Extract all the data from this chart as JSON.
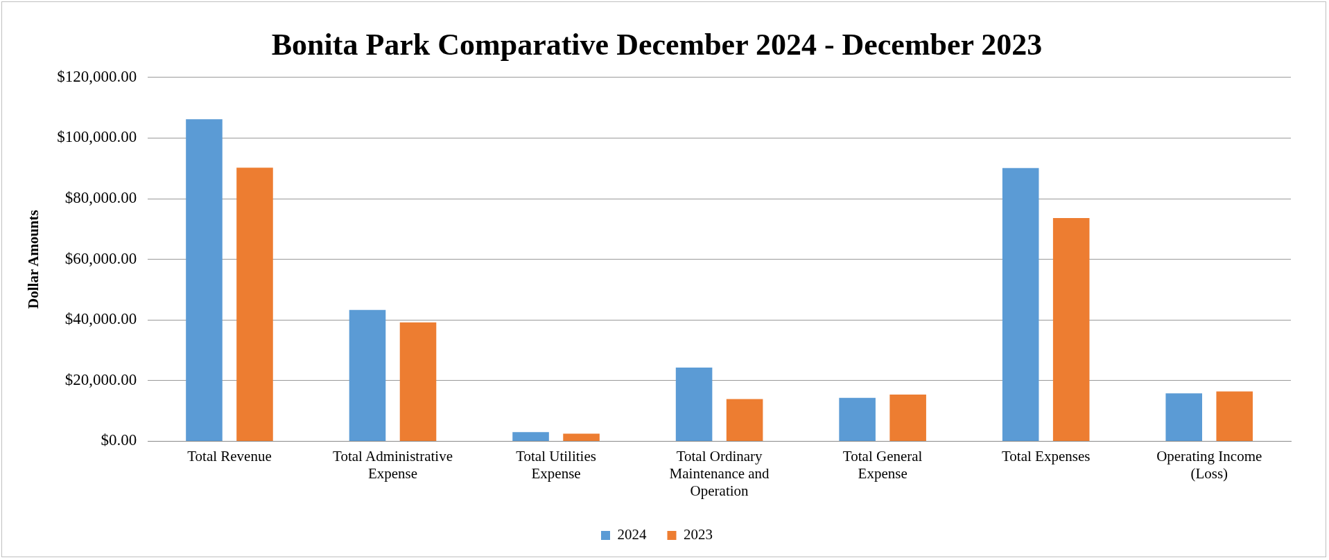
{
  "chart_data": {
    "type": "bar",
    "title": "Bonita Park Comparative December 2024 - December 2023",
    "ylabel": "Dollar Amounts",
    "categories": [
      "Total Revenue",
      "Total Administrative Expense",
      "Total Utilities Expense",
      "Total Ordinary Maintenance and Operation",
      "Total General Expense",
      "Total Expenses",
      "Operating Income (Loss)"
    ],
    "series": [
      {
        "name": "2024",
        "color": "#5b9bd5",
        "values": [
          106200,
          43300,
          3000,
          24300,
          14300,
          90100,
          15800
        ]
      },
      {
        "name": "2023",
        "color": "#ed7d31",
        "values": [
          90200,
          39200,
          2500,
          13900,
          15400,
          73600,
          16400
        ]
      }
    ],
    "ylim": [
      0,
      120000
    ],
    "yticks": [
      {
        "value": 0,
        "label": "$0.00"
      },
      {
        "value": 20000,
        "label": "$20,000.00"
      },
      {
        "value": 40000,
        "label": "$40,000.00"
      },
      {
        "value": 60000,
        "label": "$60,000.00"
      },
      {
        "value": 80000,
        "label": "$80,000.00"
      },
      {
        "value": 100000,
        "label": "$100,000.00"
      },
      {
        "value": 120000,
        "label": "$120,000.00"
      }
    ],
    "grid": "y",
    "legend": "bottom"
  }
}
